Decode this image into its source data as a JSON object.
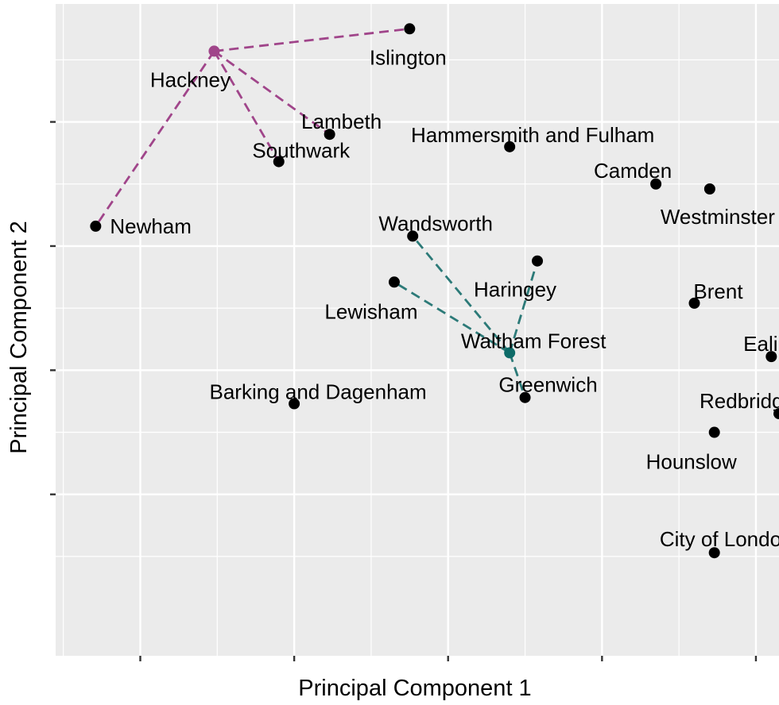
{
  "chart_data": {
    "type": "scatter",
    "title": "",
    "xlabel": "Principal Component 1",
    "ylabel": "Principal Component 2",
    "xlim": [
      -1.55,
      3.15
    ],
    "ylim": [
      -3.3,
      1.95
    ],
    "x_gridlines": [
      -1,
      0,
      1,
      2,
      3
    ],
    "y_gridlines": [
      -2,
      -1,
      0,
      1
    ],
    "tick_labels_shown": false,
    "grid": true,
    "legend": "none",
    "colors": {
      "point": "#000000",
      "cluster_a": "#a0458a",
      "cluster_b": "#2c7a78",
      "cluster_b_center": "#0d6b68",
      "panel_bg": "#ebebeb",
      "grid": "#ffffff"
    },
    "points": [
      {
        "label": "Islington",
        "x": 0.75,
        "y": 1.75
      },
      {
        "label": "Hackney",
        "x": -0.52,
        "y": 1.57
      },
      {
        "label": "Lambeth",
        "x": 0.23,
        "y": 0.9
      },
      {
        "label": "Southwark",
        "x": -0.1,
        "y": 0.68
      },
      {
        "label": "Newham",
        "x": -1.29,
        "y": 0.16
      },
      {
        "label": "Hammersmith and Fulham",
        "x": 1.4,
        "y": 0.8
      },
      {
        "label": "Camden",
        "x": 2.35,
        "y": 0.5
      },
      {
        "label": "Westminster",
        "x": 2.7,
        "y": 0.46
      },
      {
        "label": "Wandsworth",
        "x": 0.77,
        "y": 0.08
      },
      {
        "label": "Haringey",
        "x": 1.58,
        "y": -0.12
      },
      {
        "label": "Lewisham",
        "x": 0.65,
        "y": -0.29
      },
      {
        "label": "Brent",
        "x": 2.6,
        "y": -0.46
      },
      {
        "label": "Waltham Forest",
        "x": 1.4,
        "y": -0.86
      },
      {
        "label": "Ealing",
        "x": 3.1,
        "y": -0.89
      },
      {
        "label": "Greenwich",
        "x": 1.5,
        "y": -1.22
      },
      {
        "label": "Barking and Dagenham",
        "x": -0.0,
        "y": -1.27
      },
      {
        "label": "Redbridge",
        "x": 3.15,
        "y": -1.35
      },
      {
        "label": "Hounslow",
        "x": 2.73,
        "y": -1.5
      },
      {
        "label": "City of London",
        "x": 2.73,
        "y": -2.47
      }
    ],
    "clusters": [
      {
        "center": "Hackney",
        "color": "cluster_a",
        "members": [
          "Islington",
          "Lambeth",
          "Southwark",
          "Newham"
        ]
      },
      {
        "center": "Waltham Forest",
        "color": "cluster_b",
        "members": [
          "Wandsworth",
          "Haringey",
          "Lewisham",
          "Greenwich"
        ]
      }
    ]
  }
}
